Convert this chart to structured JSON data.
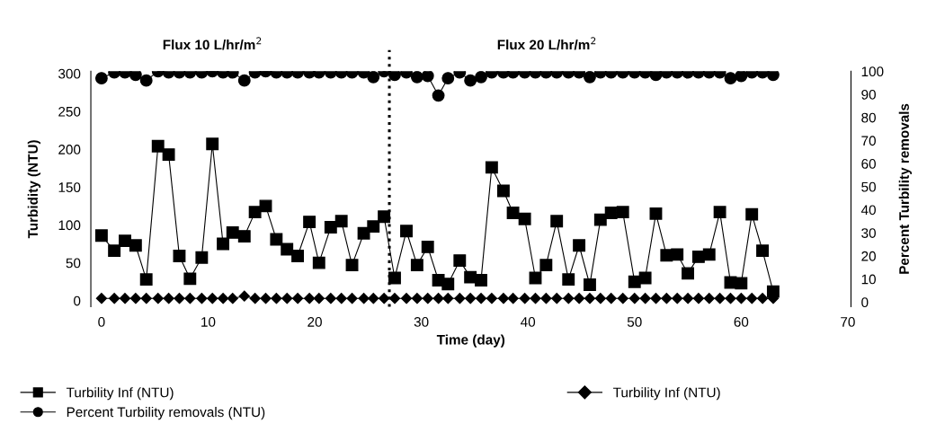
{
  "chart_data": {
    "type": "line",
    "xlabel": "Time (day)",
    "ylabel": "Turbidity (NTU)",
    "y2label": "Percent Turbility removals",
    "annotations": [
      "Flux 10 L/hr/m$^{2}$",
      "Flux 20 L/hr/m$^{2}$"
    ],
    "xlim": [
      -1,
      70.3
    ],
    "xticks": [
      0,
      10,
      20,
      30,
      40,
      50,
      60,
      70
    ],
    "ylim": [
      -8,
      303
    ],
    "yticks": [
      0,
      50,
      100,
      150,
      200,
      250,
      300
    ],
    "y2lim": [
      -2,
      100
    ],
    "y2ticks": [
      0,
      10,
      20,
      30,
      40,
      50,
      60,
      70,
      80,
      90,
      100
    ],
    "ref_lines": [
      {
        "axis": "x",
        "value": 27,
        "line_style": "dotted",
        "color": "#000000"
      }
    ],
    "grid": false,
    "legend": "bottom",
    "line_style": "solid",
    "series": [
      {
        "name": "Turbility Inf (NTU)",
        "color": "#000000",
        "marker": "square",
        "x": [
          0,
          1.2,
          2.2,
          3.2,
          4.2,
          5.3,
          6.3,
          7.3,
          8.3,
          9.4,
          10.4,
          11.4,
          12.3,
          13.4,
          14.4,
          15.4,
          16.4,
          17.4,
          18.4,
          19.5,
          20.4,
          21.5,
          22.5,
          23.5,
          24.6,
          25.5,
          26.5,
          27.5,
          28.6,
          29.6,
          30.6,
          31.6,
          32.5,
          33.6,
          34.6,
          35.6,
          36.6,
          37.7,
          38.6,
          39.7,
          40.7,
          41.7,
          42.7,
          43.8,
          44.8,
          45.8,
          46.8,
          47.8,
          48.9,
          50,
          51,
          52,
          53,
          54,
          55,
          56,
          57,
          58,
          59,
          60,
          61,
          62,
          63
        ],
        "values": [
          86,
          66,
          79,
          73,
          28,
          204,
          193,
          59,
          29,
          57,
          207,
          75,
          90,
          85,
          117,
          125,
          81,
          68,
          59,
          104,
          50,
          97,
          105,
          47,
          89,
          98,
          111,
          30,
          92,
          47,
          71,
          27,
          22,
          53,
          31,
          27,
          176,
          145,
          116,
          108,
          30,
          47,
          105,
          28,
          73,
          21,
          107,
          116,
          117,
          25,
          30,
          115,
          60,
          61,
          36,
          58,
          61,
          117,
          24,
          23,
          114,
          66,
          12
        ]
      },
      {
        "name": "Percent Turbility removals (NTU)",
        "color": "#000000",
        "marker": "circle",
        "axis": "y2",
        "x": [
          0,
          1.2,
          2.2,
          3.2,
          4.2,
          5.3,
          6.3,
          7.3,
          8.3,
          9.4,
          10.4,
          11.4,
          12.3,
          13.4,
          14.4,
          15.4,
          16.4,
          17.4,
          18.4,
          19.5,
          20.4,
          21.5,
          22.5,
          23.5,
          24.6,
          25.5,
          26.5,
          27.5,
          28.6,
          29.6,
          30.6,
          31.6,
          32.5,
          33.6,
          34.6,
          35.6,
          36.6,
          37.7,
          38.6,
          39.7,
          40.7,
          41.7,
          42.7,
          43.8,
          44.8,
          45.8,
          46.8,
          47.8,
          48.9,
          50,
          51,
          52,
          53,
          54,
          55,
          56,
          57,
          58,
          59,
          60,
          61,
          62,
          63
        ],
        "values": [
          97,
          99.5,
          99.5,
          98.5,
          96,
          100,
          99.5,
          99.5,
          99.5,
          99.5,
          100,
          99.5,
          99.5,
          96,
          99.5,
          100,
          99.5,
          99.5,
          99.5,
          99.5,
          99.5,
          99.5,
          99.5,
          99.5,
          99.5,
          97.5,
          100,
          98.5,
          99.5,
          97.5,
          98,
          89.5,
          97,
          99.5,
          96,
          97.5,
          99.5,
          99.5,
          99.5,
          99.5,
          99.5,
          99.5,
          99.5,
          99.5,
          99.5,
          97.5,
          99.5,
          99.5,
          99.5,
          99.5,
          99.5,
          98.5,
          99.5,
          99.5,
          99.5,
          99.5,
          99.5,
          99.5,
          97,
          98,
          99.5,
          99.5,
          98.5
        ]
      },
      {
        "name": "Turbility Inf (NTU)",
        "color": "#000000",
        "marker": "diamond",
        "x": [
          0,
          1.2,
          2.2,
          3.2,
          4.2,
          5.3,
          6.3,
          7.3,
          8.3,
          9.4,
          10.4,
          11.4,
          12.3,
          13.4,
          14.4,
          15.4,
          16.4,
          17.4,
          18.4,
          19.5,
          20.4,
          21.5,
          22.5,
          23.5,
          24.6,
          25.5,
          26.5,
          27.5,
          28.6,
          29.6,
          30.6,
          31.6,
          32.5,
          33.6,
          34.6,
          35.6,
          36.6,
          37.7,
          38.6,
          39.7,
          40.7,
          41.7,
          42.7,
          43.8,
          44.8,
          45.8,
          46.8,
          47.8,
          48.9,
          50,
          51,
          52,
          53,
          54,
          55,
          56,
          57,
          58,
          59,
          60,
          61,
          62,
          63
        ],
        "values": [
          3,
          3,
          3,
          3,
          3,
          3,
          3,
          3,
          3,
          3,
          3,
          3,
          3,
          6,
          3,
          3,
          3,
          3,
          3,
          3,
          3,
          3,
          3,
          3,
          3,
          3,
          3,
          3,
          3,
          3,
          3,
          3,
          3,
          3,
          3,
          3,
          3,
          3,
          3,
          3,
          3,
          3,
          3,
          3,
          3,
          3,
          3,
          3,
          3,
          3,
          3,
          3,
          3,
          3,
          3,
          3,
          3,
          3,
          3,
          3,
          3,
          3,
          3
        ]
      }
    ]
  }
}
